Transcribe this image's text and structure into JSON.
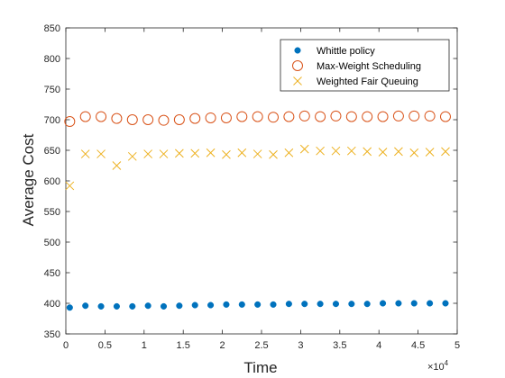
{
  "chart_data": {
    "type": "scatter",
    "title": "",
    "xlabel": "Time",
    "ylabel": "Average Cost",
    "x_multiplier_label": "×10",
    "x_multiplier_exponent": "4",
    "xlim": [
      0,
      50000
    ],
    "ylim": [
      350,
      850
    ],
    "xticks": [
      0,
      5000,
      10000,
      15000,
      20000,
      25000,
      30000,
      35000,
      40000,
      45000,
      50000
    ],
    "xtick_labels": [
      "0",
      "0.5",
      "1",
      "1.5",
      "2",
      "2.5",
      "3",
      "3.5",
      "4",
      "4.5",
      "5"
    ],
    "yticks": [
      350,
      400,
      450,
      500,
      550,
      600,
      650,
      700,
      750,
      800,
      850
    ],
    "ytick_labels": [
      "350",
      "400",
      "450",
      "500",
      "550",
      "600",
      "650",
      "700",
      "750",
      "800",
      "850"
    ],
    "grid": false,
    "legend_position": "top-right",
    "x": [
      500,
      2500,
      4500,
      6500,
      8500,
      10500,
      12500,
      14500,
      16500,
      18500,
      20500,
      22500,
      24500,
      26500,
      28500,
      30500,
      32500,
      34500,
      36500,
      38500,
      40500,
      42500,
      44500,
      46500,
      48500
    ],
    "series": [
      {
        "name": "Whittle policy",
        "marker": "filled-circle",
        "color": "#0072BD",
        "values": [
          393,
          396,
          395,
          395,
          395,
          396,
          395,
          396,
          397,
          397,
          398,
          398,
          398,
          398,
          399,
          399,
          399,
          399,
          399,
          399,
          400,
          400,
          400,
          400,
          400
        ]
      },
      {
        "name": "Max-Weight Scheduling",
        "marker": "open-circle",
        "color": "#D95319",
        "values": [
          697,
          705,
          705,
          702,
          700,
          700,
          699,
          700,
          702,
          703,
          703,
          705,
          705,
          704,
          705,
          706,
          705,
          706,
          705,
          705,
          705,
          706,
          706,
          706,
          705
        ]
      },
      {
        "name": "Weighted Fair Queuing",
        "marker": "x",
        "color": "#EDB120",
        "values": [
          592,
          644,
          644,
          625,
          640,
          644,
          644,
          645,
          645,
          646,
          643,
          646,
          644,
          643,
          646,
          652,
          649,
          649,
          649,
          648,
          647,
          648,
          646,
          647,
          648
        ]
      }
    ]
  }
}
